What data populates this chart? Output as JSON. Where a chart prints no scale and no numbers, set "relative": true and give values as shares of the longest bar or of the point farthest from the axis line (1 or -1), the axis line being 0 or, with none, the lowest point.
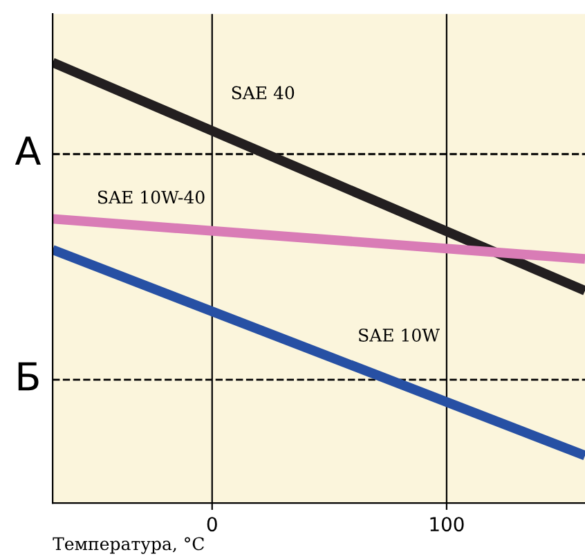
{
  "chart_data": {
    "type": "line",
    "relative": true,
    "xlabel": "Температура, °C",
    "x": [
      -68,
      159
    ],
    "xlim": [
      -68,
      159
    ],
    "xticks": [
      0,
      100
    ],
    "grid": "x",
    "series": [
      {
        "name": "SAE 40",
        "color": "#231f20",
        "values": [
          1,
          0.482
        ]
      },
      {
        "name": "SAE 10W-40",
        "color": "#d97cb6",
        "values": [
          0.645,
          0.554
        ]
      },
      {
        "name": "SAE 10W",
        "color": "#2750a4",
        "values": [
          0.575,
          0.108
        ]
      }
    ],
    "ref_lines": [
      {
        "axis": "y",
        "value": 0.792,
        "label": "А",
        "color": "#000000",
        "line_style": "dashed"
      },
      {
        "axis": "y",
        "value": 0.28,
        "label": "Б",
        "color": "#000000",
        "line_style": "dashed"
      }
    ]
  }
}
